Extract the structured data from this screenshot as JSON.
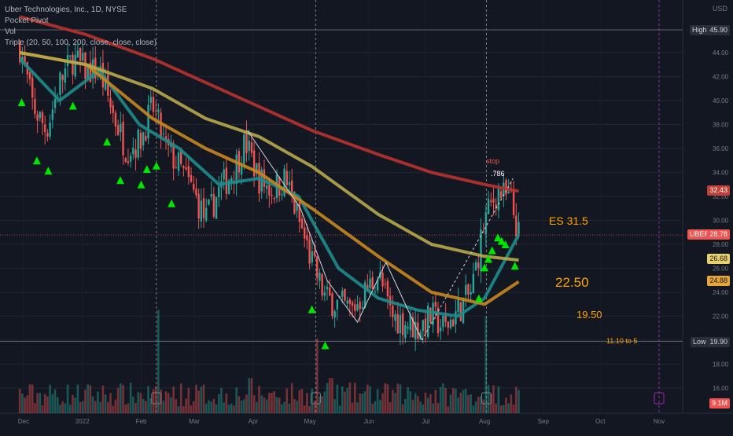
{
  "legend": {
    "title": "Uber Technologies, Inc., 1D, NYSE",
    "line2": "Pocket Pivot",
    "line3": "Vol",
    "line4": "Triple (20, 50, 100, 200, close, close, close)"
  },
  "currency": "USD",
  "markers": {
    "high_label": "High",
    "high_value": "45.90",
    "low_label": "Low",
    "low_value": "19.90",
    "last_symbol": "UBER",
    "last_value": "28.78",
    "vol_value": "9.1M"
  },
  "ma_tags": [
    {
      "value": "32.43",
      "color": "#c2403a",
      "text_color": "#ffffff"
    },
    {
      "value": "26.68",
      "color": "#e8d06a",
      "text_color": "#131722"
    },
    {
      "value": "24.88",
      "color": "#e8a63a",
      "text_color": "#131722"
    }
  ],
  "annotations": {
    "stop": "stop",
    "fib": ".786",
    "es": "ES 31.5",
    "t1": "22.50",
    "t2": "19.50",
    "t3": "11.10 to 5"
  },
  "colors": {
    "bg": "#131722",
    "up": "#26a69a",
    "down": "#ef5350",
    "ma20": "#1e8c8c",
    "ma50": "#c8861e",
    "ma100": "#b8a84a",
    "ma200": "#b8322f",
    "pivot": "#00e600",
    "annotation": "#ffa500"
  },
  "chart_data": {
    "type": "candlestick",
    "title": "Uber Technologies, Inc., 1D, NYSE",
    "y_axis_ticks": [
      16,
      18,
      20,
      22,
      24,
      26,
      28,
      30,
      32,
      34,
      36,
      38,
      40,
      42,
      44
    ],
    "x_axis_ticks": [
      "Dec",
      "2022",
      "Feb",
      "Mar",
      "Apr",
      "May",
      "Jun",
      "Jul",
      "Aug",
      "Sep",
      "Oct",
      "Nov"
    ],
    "ylim": [
      15,
      46.5
    ],
    "price_path": [
      {
        "date": "2021-11-29",
        "close": 44.5
      },
      {
        "date": "2021-12-06",
        "close": 39.5
      },
      {
        "date": "2021-12-13",
        "close": 37.5
      },
      {
        "date": "2021-12-20",
        "close": 41.5
      },
      {
        "date": "2021-12-27",
        "close": 43.5
      },
      {
        "date": "2022-01-03",
        "close": 42.5
      },
      {
        "date": "2022-01-10",
        "close": 42.5
      },
      {
        "date": "2022-01-17",
        "close": 39.0
      },
      {
        "date": "2022-01-24",
        "close": 36.0
      },
      {
        "date": "2022-01-31",
        "close": 36.5
      },
      {
        "date": "2022-02-07",
        "close": 39.5
      },
      {
        "date": "2022-02-14",
        "close": 36.0
      },
      {
        "date": "2022-02-21",
        "close": 34.5
      },
      {
        "date": "2022-02-28",
        "close": 32.5
      },
      {
        "date": "2022-03-07",
        "close": 30.0
      },
      {
        "date": "2022-03-14",
        "close": 32.5
      },
      {
        "date": "2022-03-21",
        "close": 34.0
      },
      {
        "date": "2022-03-28",
        "close": 36.5
      },
      {
        "date": "2022-04-04",
        "close": 33.5
      },
      {
        "date": "2022-04-11",
        "close": 32.5
      },
      {
        "date": "2022-04-18",
        "close": 33.5
      },
      {
        "date": "2022-04-25",
        "close": 30.0
      },
      {
        "date": "2022-05-02",
        "close": 26.5
      },
      {
        "date": "2022-05-09",
        "close": 23.5
      },
      {
        "date": "2022-05-16",
        "close": 23.0
      },
      {
        "date": "2022-05-23",
        "close": 22.5
      },
      {
        "date": "2022-05-30",
        "close": 24.0
      },
      {
        "date": "2022-06-06",
        "close": 25.5
      },
      {
        "date": "2022-06-13",
        "close": 22.0
      },
      {
        "date": "2022-06-20",
        "close": 21.5
      },
      {
        "date": "2022-06-27",
        "close": 21.0
      },
      {
        "date": "2022-07-04",
        "close": 22.0
      },
      {
        "date": "2022-07-11",
        "close": 21.0
      },
      {
        "date": "2022-07-18",
        "close": 22.5
      },
      {
        "date": "2022-07-25",
        "close": 24.0
      },
      {
        "date": "2022-08-01",
        "close": 30.0
      },
      {
        "date": "2022-08-08",
        "close": 32.5
      },
      {
        "date": "2022-08-15",
        "close": 31.5
      },
      {
        "date": "2022-08-19",
        "close": 28.78
      }
    ],
    "moving_averages": [
      {
        "name": "MA20",
        "color": "#1e8c8c",
        "points": [
          [
            "2021-11-29",
            43.5
          ],
          [
            "2021-12-20",
            40.0
          ],
          [
            "2022-01-10",
            42.5
          ],
          [
            "2022-01-31",
            38.0
          ],
          [
            "2022-02-21",
            36.0
          ],
          [
            "2022-03-14",
            33.0
          ],
          [
            "2022-04-04",
            33.5
          ],
          [
            "2022-04-25",
            32.0
          ],
          [
            "2022-05-16",
            26.0
          ],
          [
            "2022-06-06",
            23.5
          ],
          [
            "2022-06-27",
            22.5
          ],
          [
            "2022-07-18",
            22.0
          ],
          [
            "2022-08-01",
            23.5
          ],
          [
            "2022-08-19",
            28.8
          ]
        ]
      },
      {
        "name": "MA50",
        "color": "#c8861e",
        "points": [
          [
            "2021-11-29",
            44.0
          ],
          [
            "2022-01-03",
            43.0
          ],
          [
            "2022-02-07",
            38.5
          ],
          [
            "2022-03-07",
            36.0
          ],
          [
            "2022-04-04",
            34.0
          ],
          [
            "2022-05-02",
            31.0
          ],
          [
            "2022-06-06",
            27.0
          ],
          [
            "2022-07-04",
            24.0
          ],
          [
            "2022-08-01",
            23.0
          ],
          [
            "2022-08-19",
            24.88
          ]
        ]
      },
      {
        "name": "MA100",
        "color": "#b8a84a",
        "points": [
          [
            "2021-11-29",
            44.0
          ],
          [
            "2022-01-03",
            43.0
          ],
          [
            "2022-02-07",
            41.0
          ],
          [
            "2022-03-07",
            38.5
          ],
          [
            "2022-04-04",
            37.0
          ],
          [
            "2022-05-02",
            34.5
          ],
          [
            "2022-06-06",
            30.5
          ],
          [
            "2022-07-04",
            28.0
          ],
          [
            "2022-08-01",
            27.0
          ],
          [
            "2022-08-19",
            26.68
          ]
        ]
      },
      {
        "name": "MA200",
        "color": "#b8322f",
        "points": [
          [
            "2021-11-29",
            47.0
          ],
          [
            "2022-01-03",
            45.5
          ],
          [
            "2022-02-07",
            43.5
          ],
          [
            "2022-03-07",
            41.5
          ],
          [
            "2022-04-04",
            39.5
          ],
          [
            "2022-05-02",
            37.5
          ],
          [
            "2022-06-06",
            35.5
          ],
          [
            "2022-07-04",
            34.0
          ],
          [
            "2022-08-01",
            33.0
          ],
          [
            "2022-08-19",
            32.43
          ]
        ]
      }
    ],
    "horizontal_levels": [
      {
        "label": "High",
        "value": 45.9
      },
      {
        "label": "Low",
        "value": 19.9
      },
      {
        "label": "UBER",
        "value": 28.78
      }
    ],
    "pocket_pivots": [
      "2021-11-30",
      "2021-12-08",
      "2021-12-14",
      "2021-12-27",
      "2022-01-14",
      "2022-01-21",
      "2022-02-01",
      "2022-02-04",
      "2022-02-09",
      "2022-02-17",
      "2022-05-02",
      "2022-05-09",
      "2022-07-29",
      "2022-08-01",
      "2022-08-03",
      "2022-08-05",
      "2022-08-08",
      "2022-08-10",
      "2022-08-12",
      "2022-08-17"
    ],
    "pattern_lines": [
      [
        [
          "2022-03-29",
          37.5
        ],
        [
          "2022-04-26",
          31.0
        ],
        [
          "2022-05-10",
          25.0
        ],
        [
          "2022-05-26",
          21.5
        ],
        [
          "2022-06-10",
          26.5
        ],
        [
          "2022-06-29",
          20.0
        ],
        [
          "2022-08-16",
          33.5
        ]
      ]
    ],
    "annotations": [
      "stop",
      ".786",
      "ES 31.5",
      "22.50",
      "19.50",
      "11.10 to 5"
    ],
    "volume_scale_max_million": 100,
    "last_volume": "9.1M"
  }
}
